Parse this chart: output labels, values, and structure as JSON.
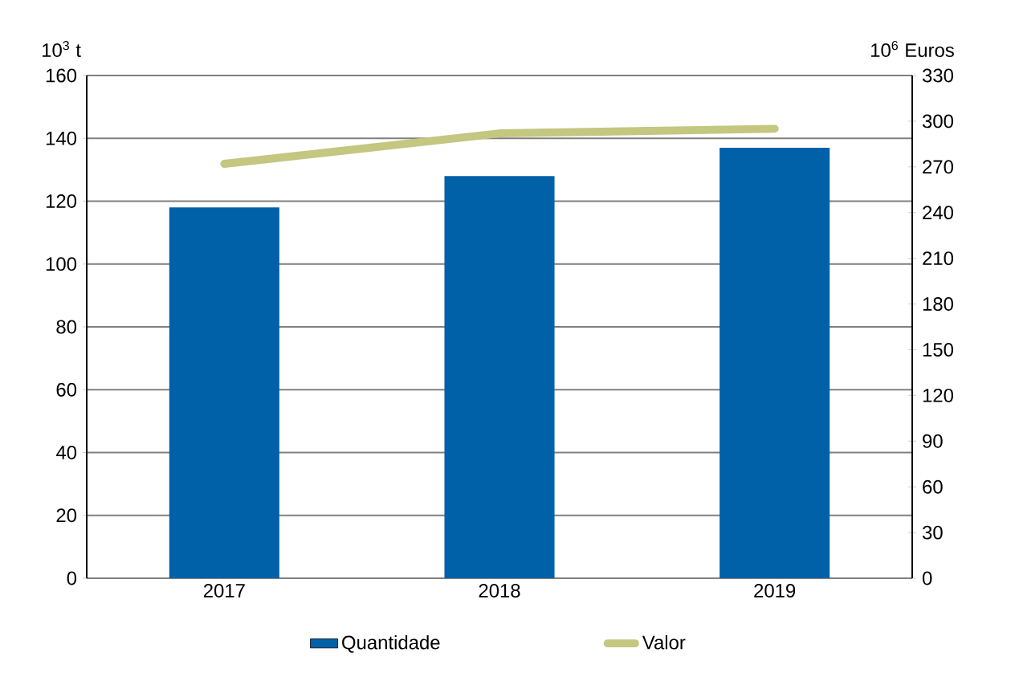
{
  "chart_data": {
    "type": "bar",
    "ylabel": "10$^{3}$ t",
    "y2label": "10$^{6}$ Euros",
    "categories": [
      "2017",
      "2018",
      "2019"
    ],
    "series": [
      {
        "name": "Quantidade",
        "color": "#0060a8",
        "values": [
          118,
          128,
          137
        ]
      },
      {
        "name": "Valor",
        "type": "line",
        "axis": "y2",
        "color": "#c3c780",
        "values": [
          272,
          292,
          295
        ]
      }
    ],
    "ylim": [
      0,
      160
    ],
    "yticks": [
      0,
      20,
      40,
      60,
      80,
      100,
      120,
      140,
      160
    ],
    "y2lim": [
      0,
      330
    ],
    "y2ticks": [
      0,
      30,
      60,
      90,
      120,
      150,
      180,
      210,
      240,
      270,
      300,
      330
    ],
    "grid": "y",
    "legend": "bottom"
  }
}
